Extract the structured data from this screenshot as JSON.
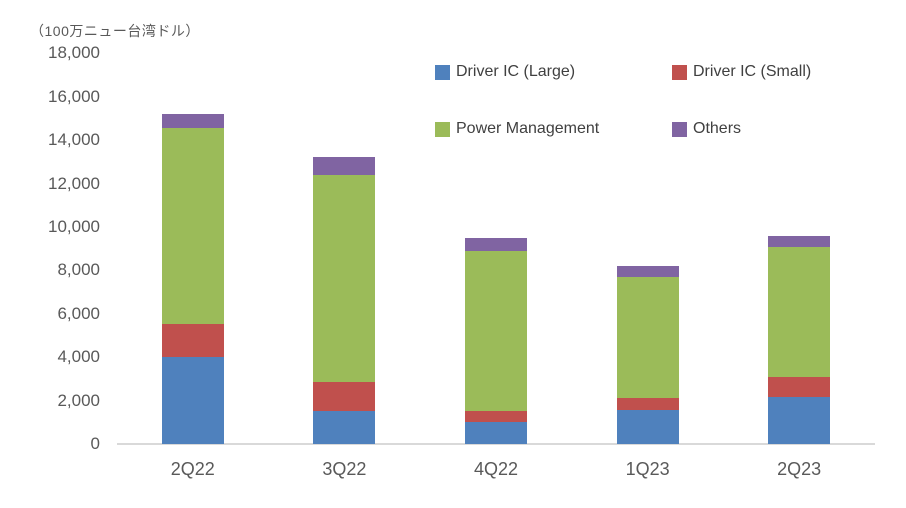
{
  "chart_data": {
    "type": "bar",
    "stacked": true,
    "unit_label": "（100万ニュー台湾ドル）",
    "categories": [
      "2Q22",
      "3Q22",
      "4Q22",
      "1Q23",
      "2Q23"
    ],
    "series": [
      {
        "name": "Driver IC (Large)",
        "color": "#4F81BD",
        "values": [
          4000,
          1500,
          1000,
          1550,
          2150
        ]
      },
      {
        "name": "Driver IC (Small)",
        "color": "#C0504D",
        "values": [
          1550,
          1350,
          500,
          550,
          950
        ]
      },
      {
        "name": "Power Management",
        "color": "#9BBB59",
        "values": [
          9000,
          9550,
          7400,
          5600,
          6000
        ]
      },
      {
        "name": "Others",
        "color": "#8064A2",
        "values": [
          650,
          850,
          600,
          500,
          500
        ]
      }
    ],
    "totals": [
      15200,
      13250,
      9450,
      8200,
      9600
    ],
    "ylim": [
      0,
      18000
    ],
    "ytick_step": 2000,
    "yticks": [
      "18,000",
      "16,000",
      "14,000",
      "12,000",
      "10,000",
      "8,000",
      "6,000",
      "4,000",
      "2,000",
      "0"
    ],
    "xlabel": "",
    "ylabel": "",
    "title": "",
    "grid": "off",
    "legend_position": "top-right-two-rows",
    "colors": {
      "axis_line": "#D9D9D9",
      "tick_text": "#595959",
      "legend_text": "#404040",
      "background": "#FFFFFF"
    }
  }
}
